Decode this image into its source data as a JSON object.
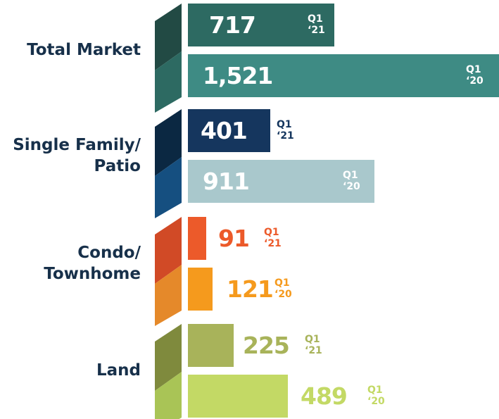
{
  "chart_data": {
    "type": "bar",
    "orientation": "horizontal",
    "categories": [
      "Total Market",
      "Single Family/\nPatio",
      "Condo/\nTownhome",
      "Land"
    ],
    "series": [
      {
        "name": "Q1\n‘21",
        "values": [
          717,
          401,
          91,
          225
        ],
        "colors": [
          "#2d6a62",
          "#15365e",
          "#ec5a2a",
          "#a8b35a"
        ],
        "accent_colors": [
          "#224a44",
          "#0b2842",
          "#d14a26",
          "#7f8a3d"
        ]
      },
      {
        "name": "Q1\n‘20",
        "values": [
          1521,
          911,
          121,
          489
        ],
        "value_labels": [
          "1,521",
          "911",
          "121",
          "489"
        ],
        "colors": [
          "#3e8b84",
          "#a9c8cc",
          "#f59a1d",
          "#c3d965"
        ],
        "accent_colors": [
          "#2d6a62",
          "#154f80",
          "#e5892a",
          "#a9c456"
        ]
      }
    ]
  }
}
